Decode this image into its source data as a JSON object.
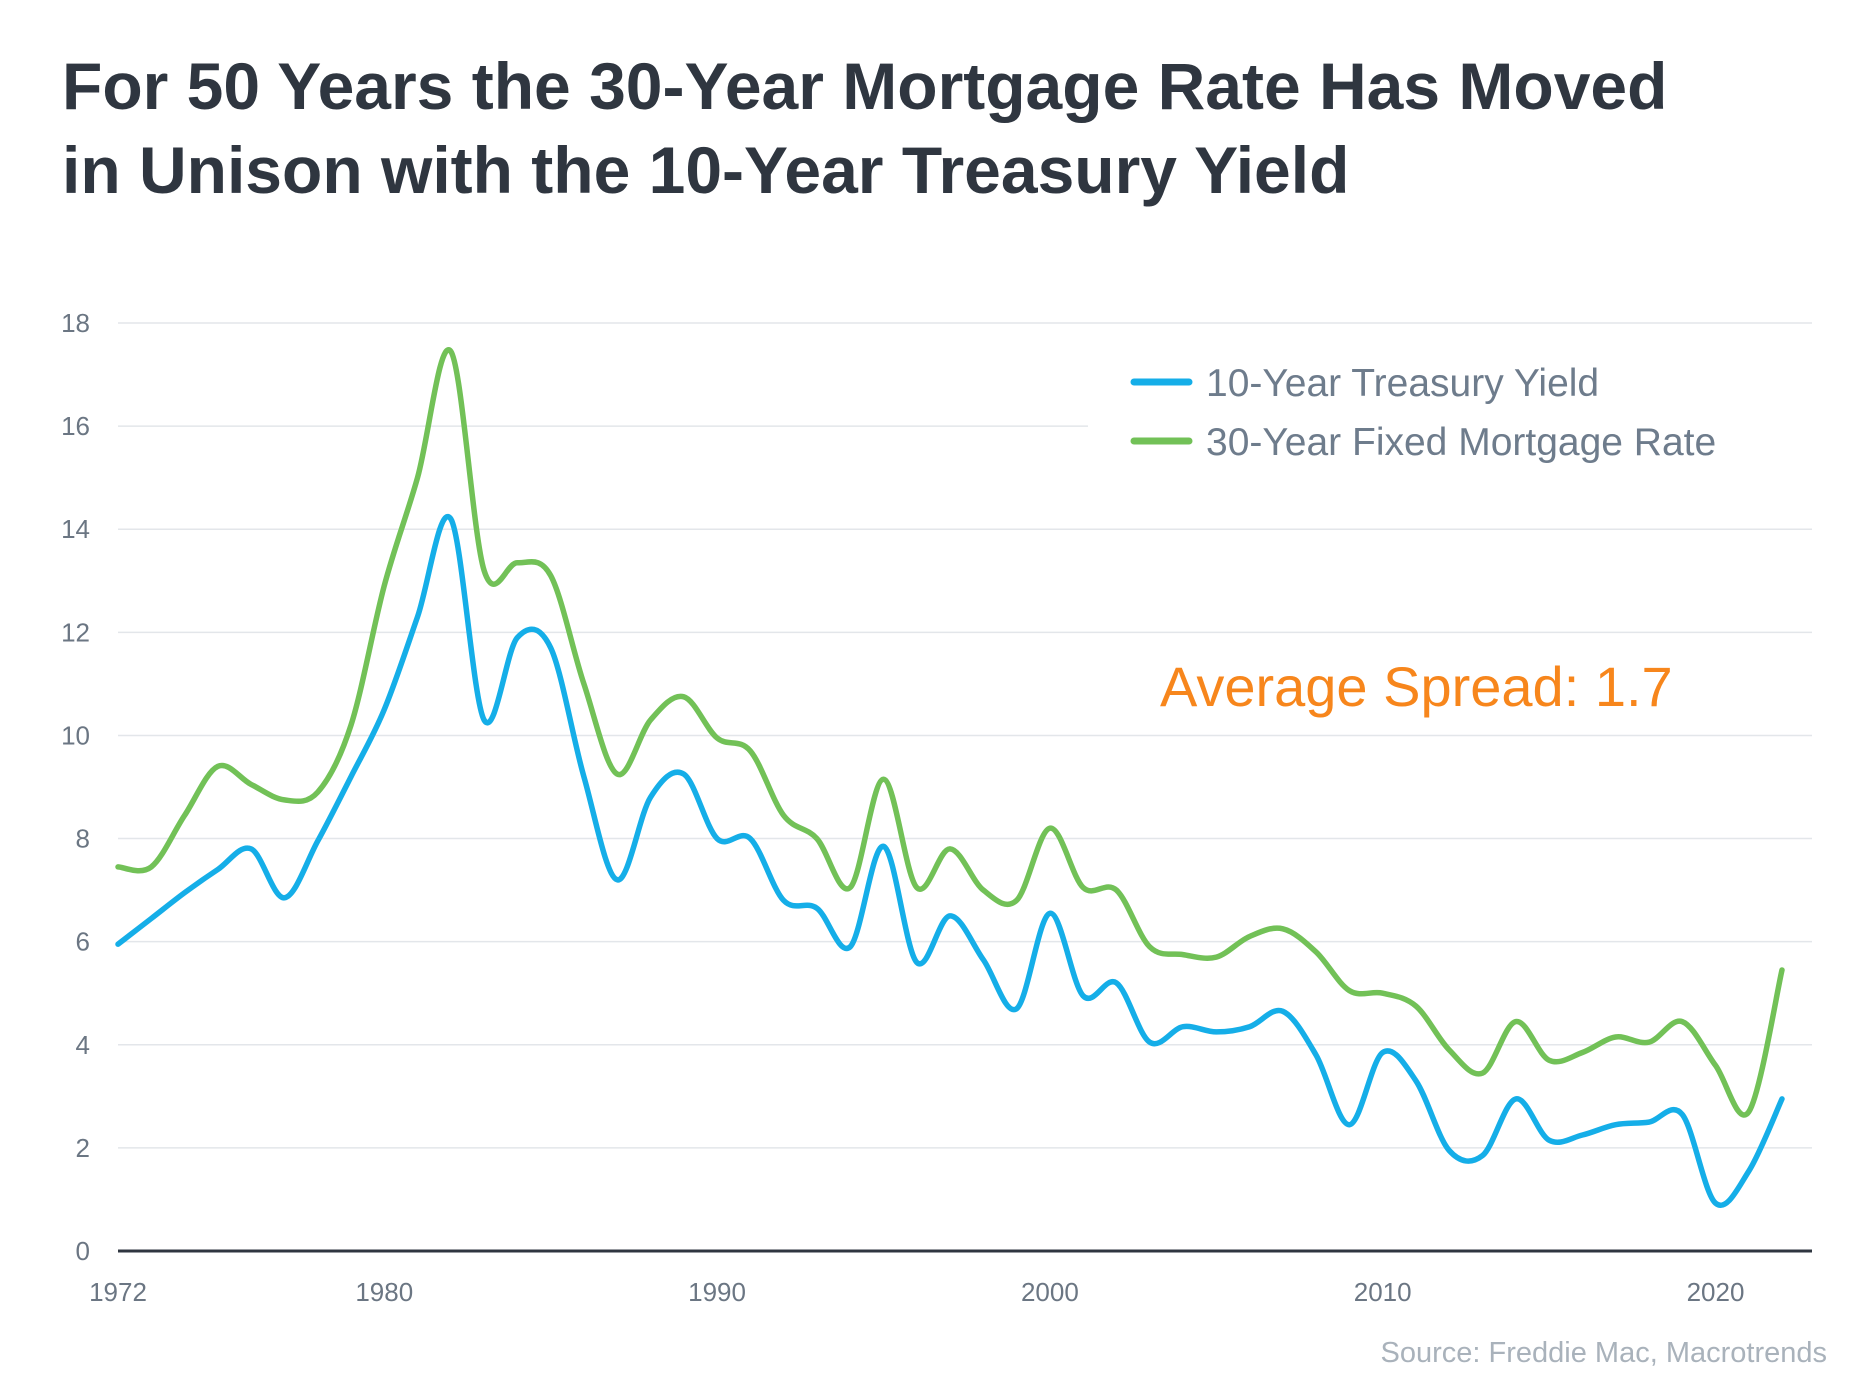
{
  "chart_data": {
    "type": "line",
    "title_lines": [
      "For 50 Years the 30-Year Mortgage Rate Has Moved",
      "in Unison with the 10-Year Treasury Yield"
    ],
    "x_ticks": [
      1972,
      1980,
      1990,
      2000,
      2010,
      2020
    ],
    "x_tick_labels": [
      "1972",
      "1980",
      "1990",
      "2000",
      "2010",
      "2020"
    ],
    "y_ticks": [
      0,
      2,
      4,
      6,
      8,
      10,
      12,
      14,
      16,
      18
    ],
    "y_tick_labels": [
      "0",
      "2",
      "4",
      "6",
      "8",
      "10",
      "12",
      "14",
      "16",
      "18"
    ],
    "xlim": [
      1972,
      2022.9
    ],
    "ylim": [
      0,
      18
    ],
    "grid": true,
    "legend_position": "top-right",
    "x": [
      1972,
      1973,
      1974,
      1975,
      1976,
      1977,
      1978,
      1979,
      1980,
      1981,
      1982,
      1983,
      1984,
      1985,
      1986,
      1987,
      1988,
      1989,
      1990,
      1991,
      1992,
      1993,
      1994,
      1995,
      1996,
      1997,
      1998,
      1999,
      2000,
      2001,
      2002,
      2003,
      2004,
      2005,
      2006,
      2007,
      2008,
      2009,
      2010,
      2011,
      2012,
      2013,
      2014,
      2015,
      2016,
      2017,
      2018,
      2019,
      2020,
      2021,
      2022
    ],
    "series": [
      {
        "name": "10-Year Treasury Yield",
        "color": "#15aee8",
        "values": [
          5.95,
          6.45,
          6.95,
          7.4,
          7.8,
          6.85,
          7.95,
          9.2,
          10.5,
          12.3,
          14.2,
          10.3,
          11.9,
          11.7,
          9.2,
          7.2,
          8.8,
          9.25,
          8.0,
          8.0,
          6.8,
          6.65,
          5.9,
          7.85,
          5.6,
          6.5,
          5.65,
          4.7,
          6.55,
          4.95,
          5.2,
          4.05,
          4.35,
          4.25,
          4.35,
          4.65,
          3.8,
          2.45,
          3.85,
          3.3,
          1.95,
          1.85,
          2.95,
          2.15,
          2.25,
          2.45,
          2.5,
          2.65,
          0.93,
          1.55,
          2.95
        ]
      },
      {
        "name": "30-Year Fixed Mortgage Rate",
        "color": "#72c157",
        "values": [
          7.45,
          7.45,
          8.45,
          9.4,
          9.05,
          8.75,
          8.9,
          10.2,
          12.9,
          15.0,
          17.45,
          13.2,
          13.35,
          13.1,
          11.0,
          9.25,
          10.3,
          10.75,
          9.95,
          9.7,
          8.45,
          8.0,
          7.05,
          9.15,
          7.05,
          7.8,
          7.0,
          6.8,
          8.2,
          7.05,
          7.0,
          5.9,
          5.75,
          5.7,
          6.1,
          6.25,
          5.8,
          5.05,
          5.0,
          4.75,
          3.9,
          3.45,
          4.45,
          3.7,
          3.85,
          4.15,
          4.05,
          4.45,
          3.6,
          2.7,
          5.45
        ]
      }
    ],
    "annotation": {
      "text": "Average Spread: 1.7",
      "color": "#f7861c"
    },
    "source": "Source: Freddie Mac, Macrotrends"
  }
}
